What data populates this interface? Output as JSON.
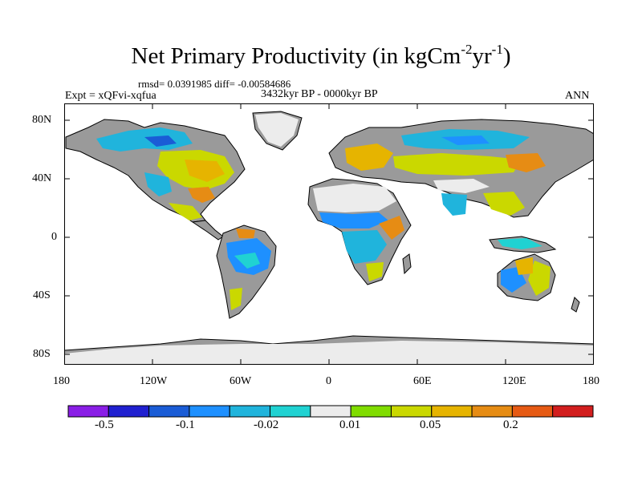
{
  "map": {
    "title_main": "Net Primary Productivity (in kgCm",
    "title_exp1": "-2",
    "title_mid": "yr",
    "title_exp2": "-1",
    "title_end": ")",
    "stats_line": "rmsd= 0.0391985 diff= -0.00584686",
    "experiment": "Expt = xQFvi-xqfua",
    "period": "3432kyr BP - 0000kyr BP",
    "season": "ANN",
    "lat_ticks": [
      "80N",
      "40N",
      "0",
      "40S",
      "80S"
    ],
    "lon_ticks": [
      "180",
      "120W",
      "60W",
      "0",
      "60E",
      "120E",
      "180"
    ],
    "land_base_color": "#9a9a9a",
    "ocean_color": "#ffffff"
  },
  "colorbar": {
    "colors": [
      "#8a1ee6",
      "#2020d0",
      "#1a5cd6",
      "#1e90ff",
      "#20b4dc",
      "#20d2d2",
      "#ececec",
      "#80dc00",
      "#cad800",
      "#e6b400",
      "#e68c14",
      "#e65a14",
      "#d21e1e"
    ],
    "labels": [
      "-0.5",
      "-0.1",
      "-0.02",
      "0.01",
      "0.05",
      "0.2"
    ]
  }
}
